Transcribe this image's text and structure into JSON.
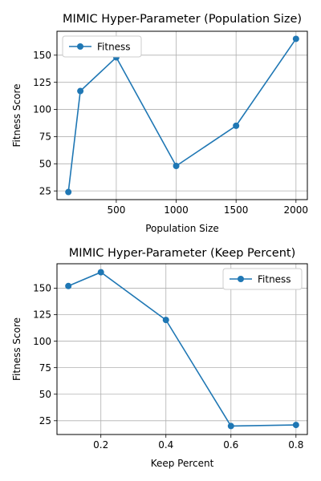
{
  "chart_data": [
    {
      "type": "line",
      "title": "MIMIC Hyper-Parameter (Population Size)",
      "xlabel": "Population Size",
      "ylabel": "Fitness Score",
      "x": [
        100,
        200,
        500,
        1000,
        1500,
        2000
      ],
      "series": [
        {
          "name": "Fitness",
          "values": [
            24,
            117,
            148,
            48,
            85,
            165
          ],
          "color": "#1f77b4",
          "marker": "circle"
        }
      ],
      "xlim": [
        5,
        2095
      ],
      "ylim": [
        17,
        172
      ],
      "xticks": [
        500,
        1000,
        1500,
        2000
      ],
      "xtick_labels": [
        "500",
        "1000",
        "1500",
        "2000"
      ],
      "yticks": [
        25,
        50,
        75,
        100,
        125,
        150
      ],
      "ytick_labels": [
        "25",
        "50",
        "75",
        "100",
        "125",
        "150"
      ],
      "grid": true,
      "legend": "top-left"
    },
    {
      "type": "line",
      "title": "MIMIC Hyper-Parameter (Keep Percent)",
      "xlabel": "Keep Percent",
      "ylabel": "Fitness Score",
      "x": [
        0.1,
        0.2,
        0.4,
        0.6,
        0.8
      ],
      "series": [
        {
          "name": "Fitness",
          "values": [
            152,
            165,
            120,
            20,
            21
          ],
          "color": "#1f77b4",
          "marker": "circle"
        }
      ],
      "xlim": [
        0.065,
        0.835
      ],
      "ylim": [
        12,
        173
      ],
      "xticks": [
        0.2,
        0.4,
        0.6,
        0.8
      ],
      "xtick_labels": [
        "0.2",
        "0.4",
        "0.6",
        "0.8"
      ],
      "yticks": [
        25,
        50,
        75,
        100,
        125,
        150
      ],
      "ytick_labels": [
        "25",
        "50",
        "75",
        "100",
        "125",
        "150"
      ],
      "grid": true,
      "legend": "top-right"
    }
  ]
}
